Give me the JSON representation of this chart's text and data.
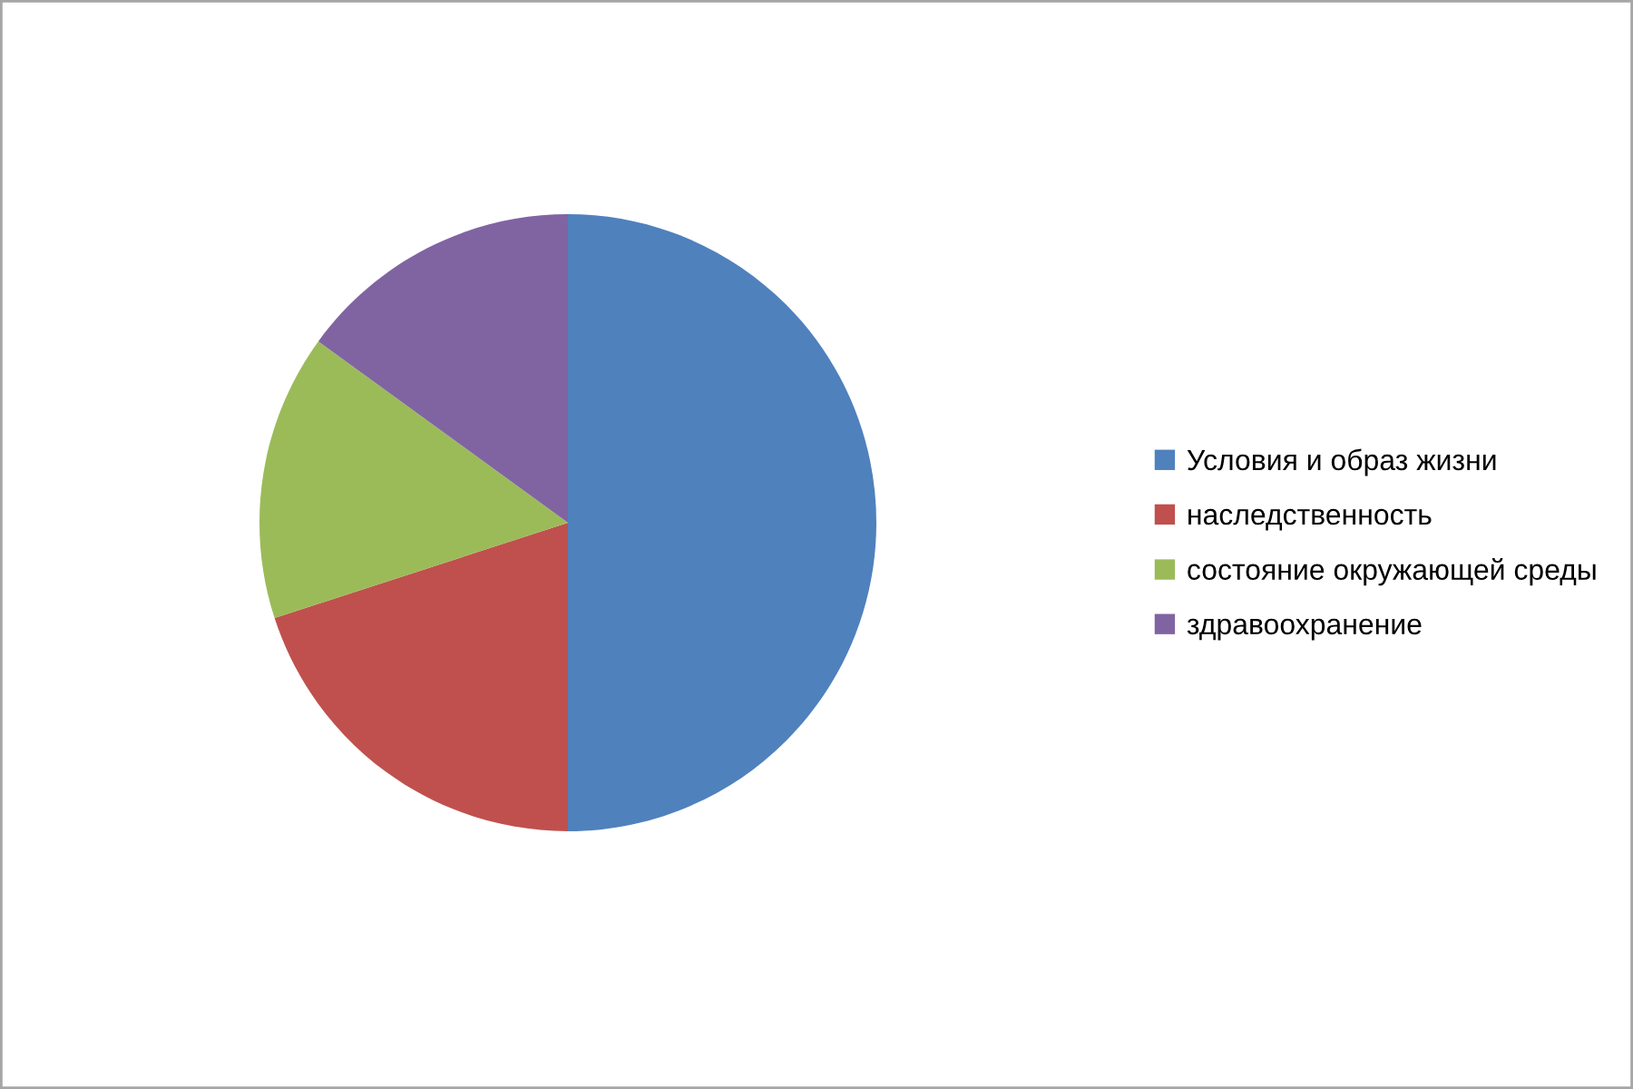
{
  "chart_data": {
    "type": "pie",
    "categories": [
      "Условия и образ жизни",
      "наследственность",
      "состояние окружающей среды",
      "здравоохранение"
    ],
    "values": [
      50,
      20,
      15,
      15
    ],
    "colors": [
      "#4f81bd",
      "#c0504d",
      "#9bbb59",
      "#8064a2"
    ],
    "legend": "right"
  }
}
